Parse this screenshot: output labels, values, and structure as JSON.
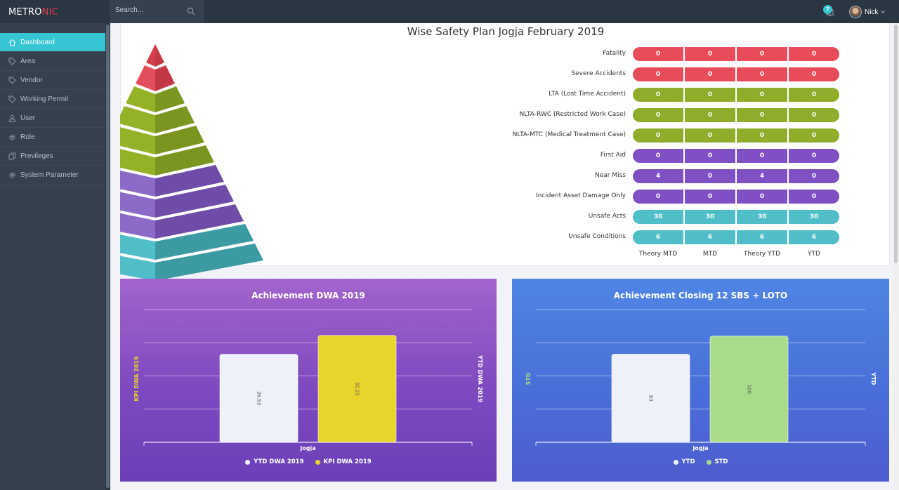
{
  "app": {
    "logo_main": "METRO",
    "logo_accent": "NIC"
  },
  "header": {
    "search_placeholder": "Search...",
    "notification_count": "7",
    "user_name": "Nick"
  },
  "sidebar": {
    "items": [
      {
        "label": "Dashboard",
        "icon": "home-icon",
        "active": true
      },
      {
        "label": "Area",
        "icon": "tag-icon"
      },
      {
        "label": "Vendor",
        "icon": "tag-icon"
      },
      {
        "label": "Working Permit",
        "icon": "tag-icon"
      },
      {
        "label": "User",
        "icon": "user-icon"
      },
      {
        "label": "Role",
        "icon": "gear-icon"
      },
      {
        "label": "Previleges",
        "icon": "copy-icon"
      },
      {
        "label": "System Parameter",
        "icon": "gear-icon"
      }
    ]
  },
  "safety": {
    "title": "Wise Safety Plan Jogja February 2019",
    "columns": [
      "Theory MTD",
      "MTD",
      "Theory YTD",
      "YTD"
    ],
    "rows": [
      {
        "label": "Fatality",
        "values": [
          "0",
          "0",
          "0",
          "0"
        ],
        "color": "#e84c5b"
      },
      {
        "label": "Severe Accidents",
        "values": [
          "0",
          "0",
          "0",
          "0"
        ],
        "color": "#e84c5b"
      },
      {
        "label": "LTA (Lost Time Accident)",
        "values": [
          "0",
          "0",
          "0",
          "0"
        ],
        "color": "#8fad2a"
      },
      {
        "label": "NLTA-RWC (Restricted Work Case)",
        "values": [
          "0",
          "0",
          "0",
          "0"
        ],
        "color": "#8fad2a"
      },
      {
        "label": "NLTA-MTC (Medical Treatment Case)",
        "values": [
          "0",
          "0",
          "0",
          "0"
        ],
        "color": "#8fad2a"
      },
      {
        "label": "First Aid",
        "values": [
          "0",
          "0",
          "0",
          "0"
        ],
        "color": "#7f4fc4"
      },
      {
        "label": "Near Miss",
        "values": [
          "4",
          "0",
          "4",
          "0"
        ],
        "color": "#7f4fc4"
      },
      {
        "label": "Incident Asset Damage Only",
        "values": [
          "0",
          "0",
          "0",
          "0"
        ],
        "color": "#7f4fc4"
      },
      {
        "label": "Unsafe Acts",
        "values": [
          "30",
          "30",
          "30",
          "30"
        ],
        "color": "#4fbec8"
      },
      {
        "label": "Unsafe Conditions",
        "values": [
          "6",
          "6",
          "6",
          "6"
        ],
        "color": "#4fbec8"
      }
    ]
  },
  "chart_data": [
    {
      "type": "bar",
      "title": "Achievement DWA 2019",
      "categories": [
        "Jogja"
      ],
      "series": [
        {
          "name": "YTD DWA 2019",
          "values": [
            26.53
          ],
          "label": "26.53",
          "color": "#eef0fa"
        },
        {
          "name": "KPI DWA 2019",
          "values": [
            32.23
          ],
          "label": "32.23",
          "color": "#e8d42a"
        }
      ],
      "ylabel_left": "KPI DWA 2019",
      "ylabel_right": "YTD DWA 2019",
      "ymax": 40,
      "grid": true,
      "legend": "bottom"
    },
    {
      "type": "bar",
      "title": "Achievement Closing 12 SBS + LOTO",
      "categories": [
        "Jogja"
      ],
      "series": [
        {
          "name": "YTD",
          "values": [
            83
          ],
          "label": "83",
          "color": "#eef0fa"
        },
        {
          "name": "STD",
          "values": [
            100
          ],
          "label": "100",
          "color": "#a8dc8a"
        }
      ],
      "ylabel_left": "STD",
      "ylabel_right": "YTD",
      "ymax": 125,
      "grid": true,
      "legend": "bottom"
    }
  ]
}
